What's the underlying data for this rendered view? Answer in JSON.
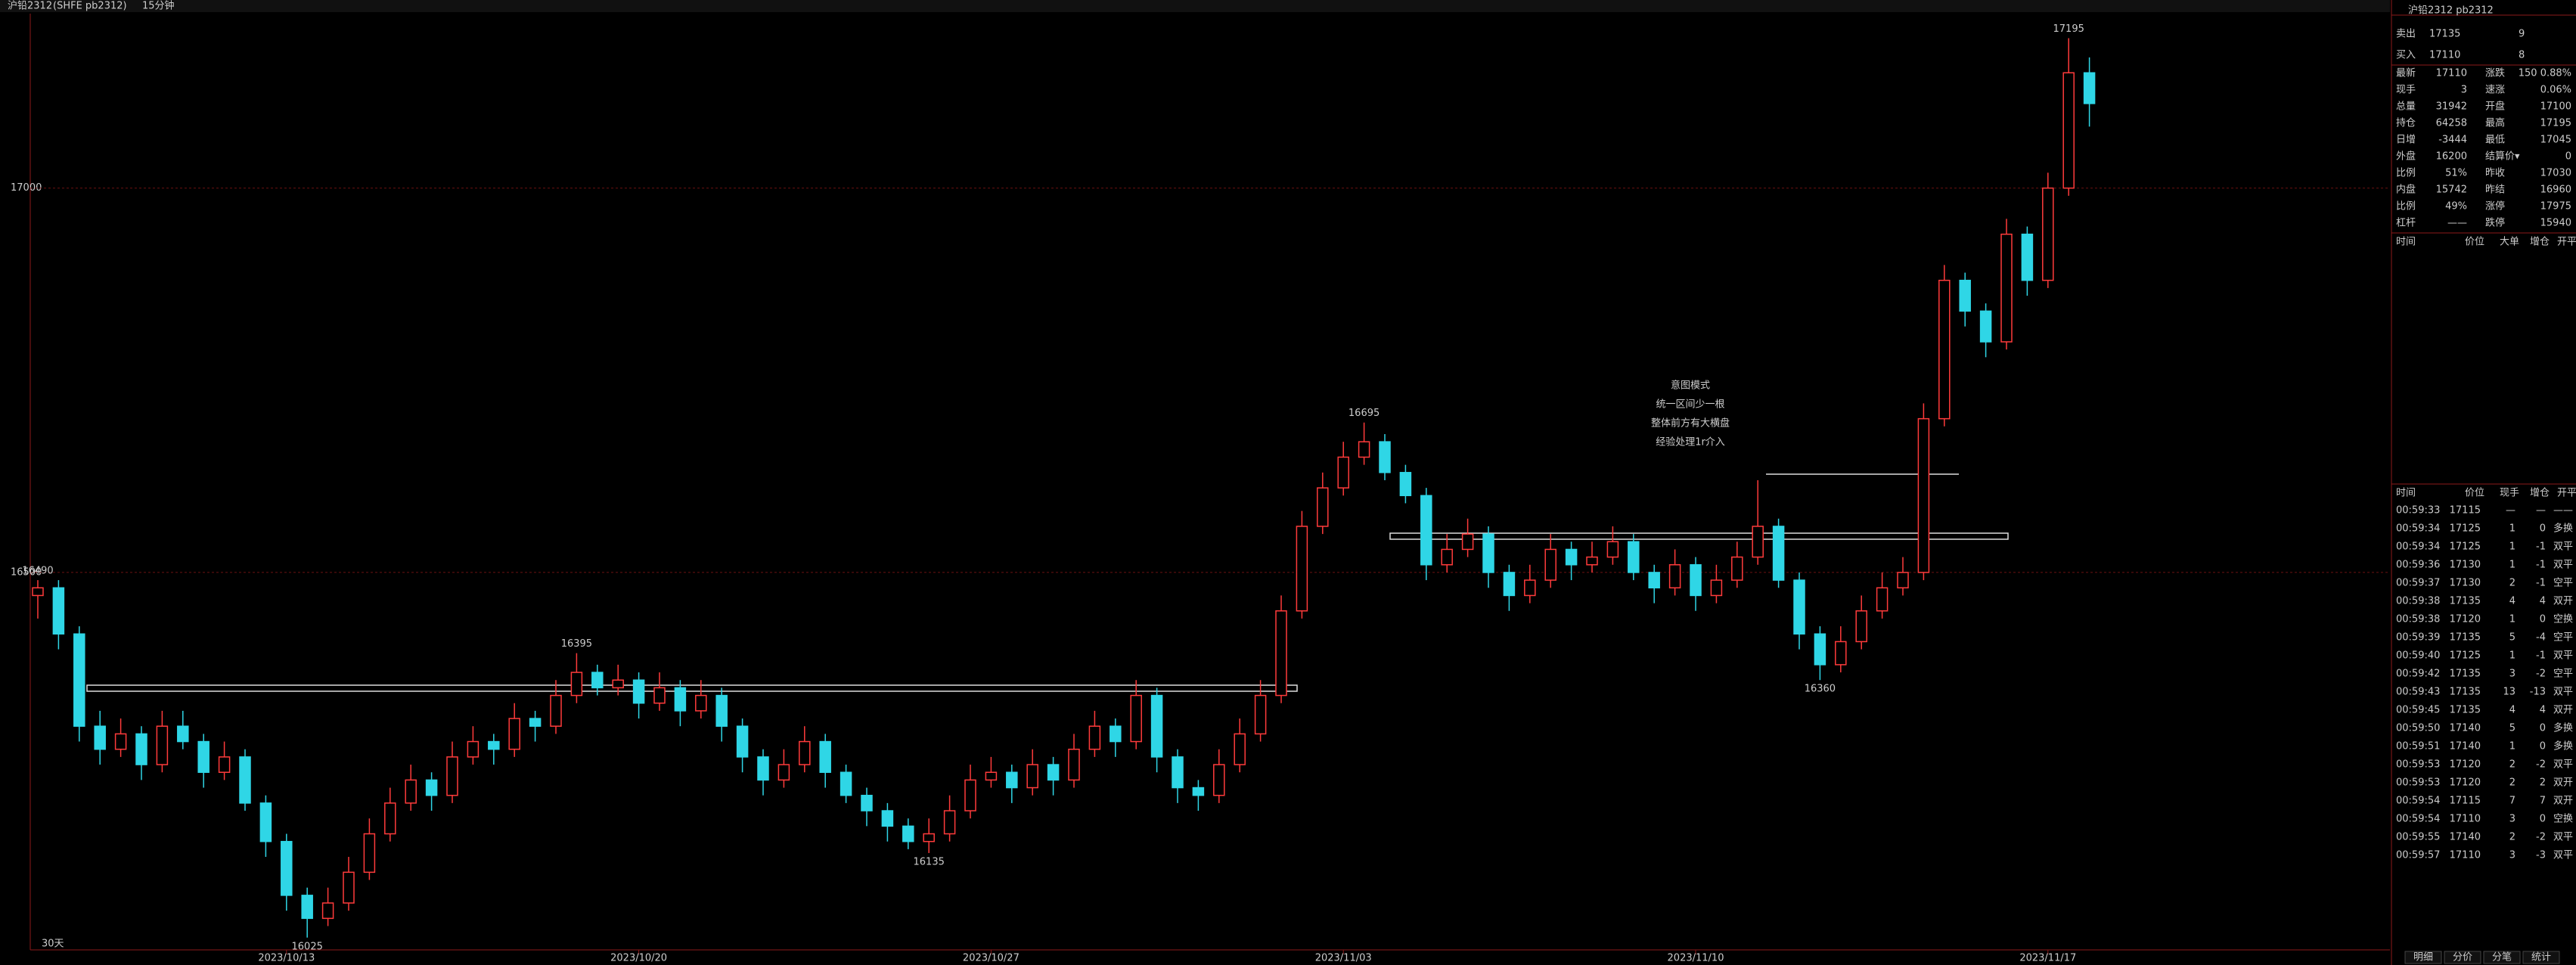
{
  "top_bar": {
    "label": "沪铅2312",
    "code": "(SHFE pb2312)",
    "period": "15分钟"
  },
  "chart_data": {
    "type": "candlestick",
    "ylim": [
      16010,
      17225
    ],
    "yticks": [
      16500,
      17000
    ],
    "grid": true,
    "up_color": "#ff3b3b",
    "down_color": "#2fd6e6",
    "xticks": [
      {
        "value": 12,
        "label": "2023/10/13"
      },
      {
        "value": 29,
        "label": "2023/10/20"
      },
      {
        "value": 46,
        "label": "2023/10/27"
      },
      {
        "value": 63,
        "label": "2023/11/03"
      },
      {
        "value": 80,
        "label": "2023/11/10"
      },
      {
        "value": 97,
        "label": "2023/11/17"
      }
    ],
    "annotated": [
      [
        0,
        "high"
      ],
      [
        26,
        "high"
      ],
      [
        13,
        "low"
      ],
      [
        43,
        "low"
      ],
      [
        64,
        "high"
      ],
      [
        86,
        "low"
      ],
      [
        98,
        "high"
      ]
    ],
    "note_lines": [
      "意图模式",
      "统一区间少一根",
      "整体前方有大横盘",
      "经验处理1r介入"
    ],
    "range_label": "30天",
    "candles": [
      [
        16470,
        16490,
        16440,
        16480
      ],
      [
        16480,
        16490,
        16400,
        16420
      ],
      [
        16420,
        16430,
        16280,
        16300
      ],
      [
        16300,
        16320,
        16250,
        16270
      ],
      [
        16270,
        16310,
        16260,
        16290
      ],
      [
        16290,
        16300,
        16230,
        16250
      ],
      [
        16250,
        16320,
        16240,
        16300
      ],
      [
        16300,
        16320,
        16270,
        16280
      ],
      [
        16280,
        16290,
        16220,
        16240
      ],
      [
        16240,
        16280,
        16230,
        16260
      ],
      [
        16260,
        16270,
        16190,
        16200
      ],
      [
        16200,
        16210,
        16130,
        16150
      ],
      [
        16150,
        16160,
        16060,
        16080
      ],
      [
        16080,
        16090,
        16025,
        16050
      ],
      [
        16050,
        16090,
        16040,
        16070
      ],
      [
        16070,
        16130,
        16060,
        16110
      ],
      [
        16110,
        16180,
        16100,
        16160
      ],
      [
        16160,
        16220,
        16150,
        16200
      ],
      [
        16200,
        16250,
        16190,
        16230
      ],
      [
        16230,
        16240,
        16190,
        16210
      ],
      [
        16210,
        16280,
        16200,
        16260
      ],
      [
        16260,
        16300,
        16250,
        16280
      ],
      [
        16280,
        16290,
        16250,
        16270
      ],
      [
        16270,
        16330,
        16260,
        16310
      ],
      [
        16310,
        16320,
        16280,
        16300
      ],
      [
        16300,
        16360,
        16290,
        16340
      ],
      [
        16340,
        16395,
        16330,
        16370
      ],
      [
        16370,
        16380,
        16340,
        16350
      ],
      [
        16350,
        16380,
        16340,
        16360
      ],
      [
        16360,
        16370,
        16310,
        16330
      ],
      [
        16330,
        16370,
        16320,
        16350
      ],
      [
        16350,
        16360,
        16300,
        16320
      ],
      [
        16320,
        16360,
        16310,
        16340
      ],
      [
        16340,
        16350,
        16280,
        16300
      ],
      [
        16300,
        16310,
        16240,
        16260
      ],
      [
        16260,
        16270,
        16210,
        16230
      ],
      [
        16230,
        16270,
        16220,
        16250
      ],
      [
        16250,
        16300,
        16240,
        16280
      ],
      [
        16280,
        16290,
        16220,
        16240
      ],
      [
        16240,
        16250,
        16200,
        16210
      ],
      [
        16210,
        16220,
        16170,
        16190
      ],
      [
        16190,
        16200,
        16150,
        16170
      ],
      [
        16170,
        16180,
        16140,
        16150
      ],
      [
        16150,
        16180,
        16135,
        16160
      ],
      [
        16160,
        16210,
        16150,
        16190
      ],
      [
        16190,
        16250,
        16180,
        16230
      ],
      [
        16230,
        16260,
        16220,
        16240
      ],
      [
        16240,
        16250,
        16200,
        16220
      ],
      [
        16220,
        16270,
        16210,
        16250
      ],
      [
        16250,
        16260,
        16210,
        16230
      ],
      [
        16230,
        16290,
        16220,
        16270
      ],
      [
        16270,
        16320,
        16260,
        16300
      ],
      [
        16300,
        16310,
        16260,
        16280
      ],
      [
        16280,
        16360,
        16270,
        16340
      ],
      [
        16340,
        16350,
        16240,
        16260
      ],
      [
        16260,
        16270,
        16200,
        16220
      ],
      [
        16220,
        16230,
        16190,
        16210
      ],
      [
        16210,
        16270,
        16200,
        16250
      ],
      [
        16250,
        16310,
        16240,
        16290
      ],
      [
        16290,
        16360,
        16280,
        16340
      ],
      [
        16340,
        16470,
        16330,
        16450
      ],
      [
        16450,
        16580,
        16440,
        16560
      ],
      [
        16560,
        16630,
        16550,
        16610
      ],
      [
        16610,
        16670,
        16600,
        16650
      ],
      [
        16650,
        16695,
        16640,
        16670
      ],
      [
        16670,
        16680,
        16620,
        16630
      ],
      [
        16630,
        16640,
        16590,
        16600
      ],
      [
        16600,
        16610,
        16490,
        16510
      ],
      [
        16510,
        16550,
        16500,
        16530
      ],
      [
        16530,
        16570,
        16520,
        16550
      ],
      [
        16550,
        16560,
        16480,
        16500
      ],
      [
        16500,
        16510,
        16450,
        16470
      ],
      [
        16470,
        16510,
        16460,
        16490
      ],
      [
        16490,
        16550,
        16480,
        16530
      ],
      [
        16530,
        16540,
        16490,
        16510
      ],
      [
        16510,
        16540,
        16500,
        16520
      ],
      [
        16520,
        16560,
        16510,
        16540
      ],
      [
        16540,
        16550,
        16490,
        16500
      ],
      [
        16500,
        16510,
        16460,
        16480
      ],
      [
        16480,
        16530,
        16470,
        16510
      ],
      [
        16510,
        16520,
        16450,
        16470
      ],
      [
        16470,
        16510,
        16460,
        16490
      ],
      [
        16490,
        16540,
        16480,
        16520
      ],
      [
        16520,
        16620,
        16510,
        16560
      ],
      [
        16560,
        16570,
        16480,
        16490
      ],
      [
        16490,
        16500,
        16400,
        16420
      ],
      [
        16420,
        16430,
        16360,
        16380
      ],
      [
        16380,
        16430,
        16370,
        16410
      ],
      [
        16410,
        16470,
        16400,
        16450
      ],
      [
        16450,
        16500,
        16440,
        16480
      ],
      [
        16480,
        16520,
        16470,
        16500
      ],
      [
        16500,
        16720,
        16490,
        16700
      ],
      [
        16700,
        16900,
        16690,
        16880
      ],
      [
        16880,
        16890,
        16820,
        16840
      ],
      [
        16840,
        16850,
        16780,
        16800
      ],
      [
        16800,
        16960,
        16790,
        16940
      ],
      [
        16940,
        16950,
        16860,
        16880
      ],
      [
        16880,
        17020,
        16870,
        17000
      ],
      [
        17000,
        17195,
        16990,
        17150
      ],
      [
        17150,
        17170,
        17080,
        17110
      ]
    ]
  },
  "quote": {
    "title": "沪铅2312  pb2312",
    "sell": [
      "卖出",
      "17135",
      "9"
    ],
    "buy": [
      "买入",
      "17110",
      "8"
    ],
    "rows": [
      [
        "最新",
        "17110",
        "涨跌",
        "150 0.88%"
      ],
      [
        "现手",
        "3",
        "速涨",
        "0.06%"
      ],
      [
        "总量",
        "31942",
        "开盘",
        "17100"
      ],
      [
        "持仓",
        "64258",
        "最高",
        "17195"
      ],
      [
        "日增",
        "-3444",
        "最低",
        "17045"
      ],
      [
        "外盘",
        "16200",
        "结算价▾",
        "0"
      ],
      [
        "比例",
        "51%",
        "昨收",
        "17030"
      ],
      [
        "内盘",
        "15742",
        "昨结",
        "16960"
      ],
      [
        "比例",
        "49%",
        "涨停",
        "17975"
      ],
      [
        "杠杆",
        "——",
        "跌停",
        "15940"
      ]
    ]
  },
  "trade_header": [
    "时间",
    "价位",
    "大单",
    "增仓",
    "开平"
  ],
  "ticks_header": [
    "时间",
    "价位",
    "现手",
    "增仓",
    "开平"
  ],
  "ticks": [
    [
      "00:59:33",
      "17115",
      "—",
      "—",
      "——"
    ],
    [
      "00:59:34",
      "17125",
      "1",
      "0",
      "多换"
    ],
    [
      "00:59:34",
      "17125",
      "1",
      "-1",
      "双平"
    ],
    [
      "00:59:36",
      "17130",
      "1",
      "-1",
      "双平"
    ],
    [
      "00:59:37",
      "17130",
      "2",
      "-1",
      "空平"
    ],
    [
      "00:59:38",
      "17135",
      "4",
      "4",
      "双开"
    ],
    [
      "00:59:38",
      "17120",
      "1",
      "0",
      "空换"
    ],
    [
      "00:59:39",
      "17135",
      "5",
      "-4",
      "空平"
    ],
    [
      "00:59:40",
      "17125",
      "1",
      "-1",
      "双平"
    ],
    [
      "00:59:42",
      "17135",
      "3",
      "-2",
      "空平"
    ],
    [
      "00:59:43",
      "17135",
      "13",
      "-13",
      "双平"
    ],
    [
      "00:59:45",
      "17135",
      "4",
      "4",
      "双开"
    ],
    [
      "00:59:50",
      "17140",
      "5",
      "0",
      "多换"
    ],
    [
      "00:59:51",
      "17140",
      "1",
      "0",
      "多换"
    ],
    [
      "00:59:53",
      "17120",
      "2",
      "-2",
      "双平"
    ],
    [
      "00:59:53",
      "17120",
      "2",
      "2",
      "双开"
    ],
    [
      "00:59:54",
      "17115",
      "7",
      "7",
      "双开"
    ],
    [
      "00:59:54",
      "17110",
      "3",
      "0",
      "空换"
    ],
    [
      "00:59:55",
      "17140",
      "2",
      "-2",
      "双平"
    ],
    [
      "00:59:57",
      "17110",
      "3",
      "-3",
      "双平"
    ]
  ],
  "tabs": [
    "明细",
    "分价",
    "分笔",
    "统计"
  ]
}
